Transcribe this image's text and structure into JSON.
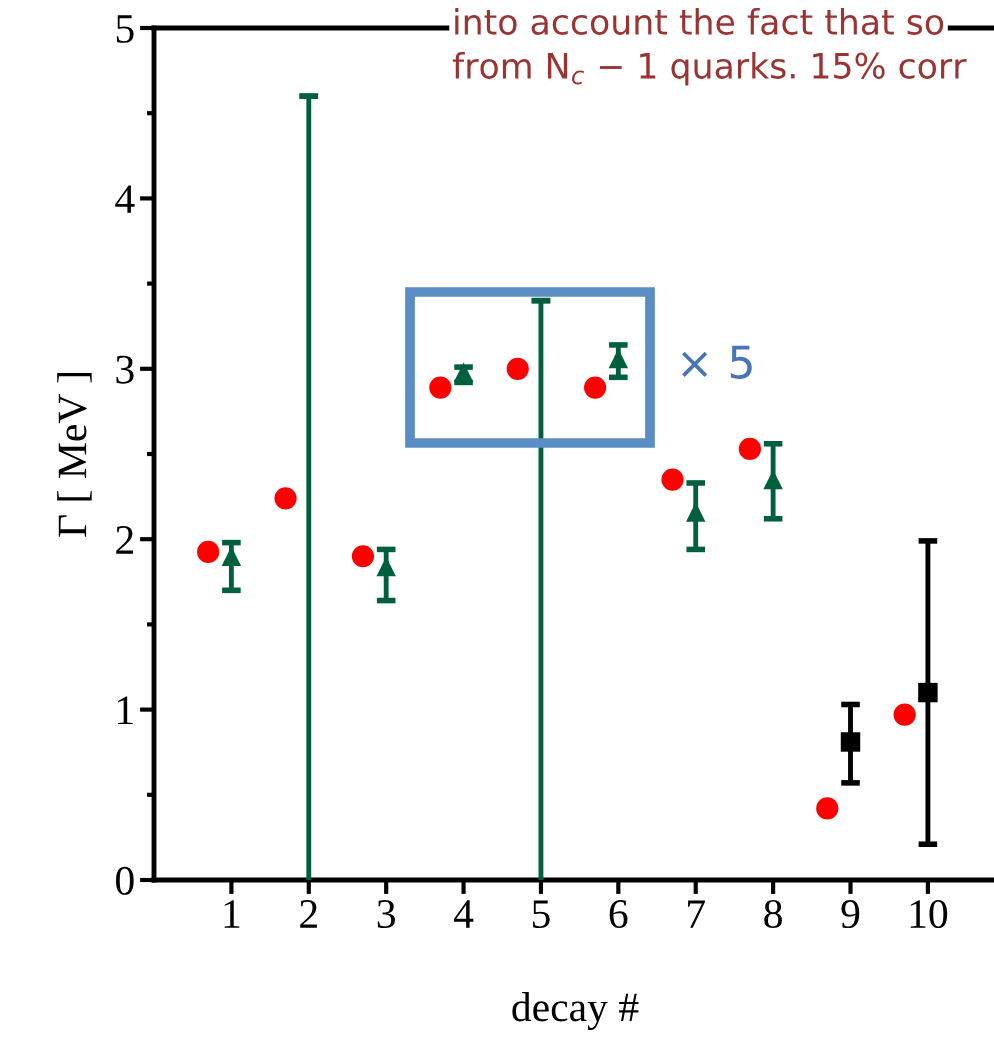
{
  "chart_data": {
    "type": "scatter",
    "xlabel": "decay #",
    "ylabel": "Γ [ MeV ]",
    "xlim": [
      0,
      10.88
    ],
    "xticks": [
      1,
      2,
      3,
      4,
      5,
      6,
      7,
      8,
      9,
      10
    ],
    "ylim": [
      0,
      5
    ],
    "yticks": [
      0,
      1,
      2,
      3,
      4,
      5
    ],
    "grid": false,
    "legend": false,
    "series": [
      {
        "color": "#ff0000",
        "marker": "circle",
        "x": [
          0.7,
          1.7,
          2.7,
          3.7,
          4.7,
          5.7,
          6.7,
          7.7,
          8.7,
          9.7
        ],
        "values": [
          1.925,
          2.24,
          1.9,
          2.89,
          3.0,
          2.89,
          2.35,
          2.53,
          0.42,
          0.97
        ]
      },
      {
        "color": "#005f3c",
        "marker": "triangle",
        "x": [
          1,
          3,
          4,
          6,
          7,
          8
        ],
        "values": [
          1.9,
          1.84,
          2.98,
          3.06,
          2.16,
          2.35
        ],
        "errors": [
          [
            1.7,
            1.98
          ],
          [
            1.64,
            1.94
          ],
          [
            2.92,
            3.01
          ],
          [
            2.95,
            3.14
          ],
          [
            1.94,
            2.33
          ],
          [
            2.12,
            2.56
          ]
        ]
      },
      {
        "type": "line",
        "color": "#005f3c",
        "marker": "none",
        "x": [
          2,
          2
        ],
        "values": [
          0,
          4.6
        ],
        "errors": [
          null,
          0
        ]
      },
      {
        "type": "line",
        "color": "#005f3c",
        "marker": "none",
        "x": [
          5,
          5
        ],
        "values": [
          0,
          3.4
        ],
        "errors": [
          null,
          0
        ]
      },
      {
        "color": "#000000",
        "marker": "square",
        "x": [
          9,
          10
        ],
        "values": [
          0.81,
          1.1
        ],
        "errors": [
          [
            0.57,
            1.03
          ],
          [
            0.21,
            1.99
          ]
        ]
      }
    ],
    "annotations": [
      "× 5",
      "into account the fact that so",
      "from N$_{c}$ − 1 quarks. 15% corr"
    ]
  }
}
